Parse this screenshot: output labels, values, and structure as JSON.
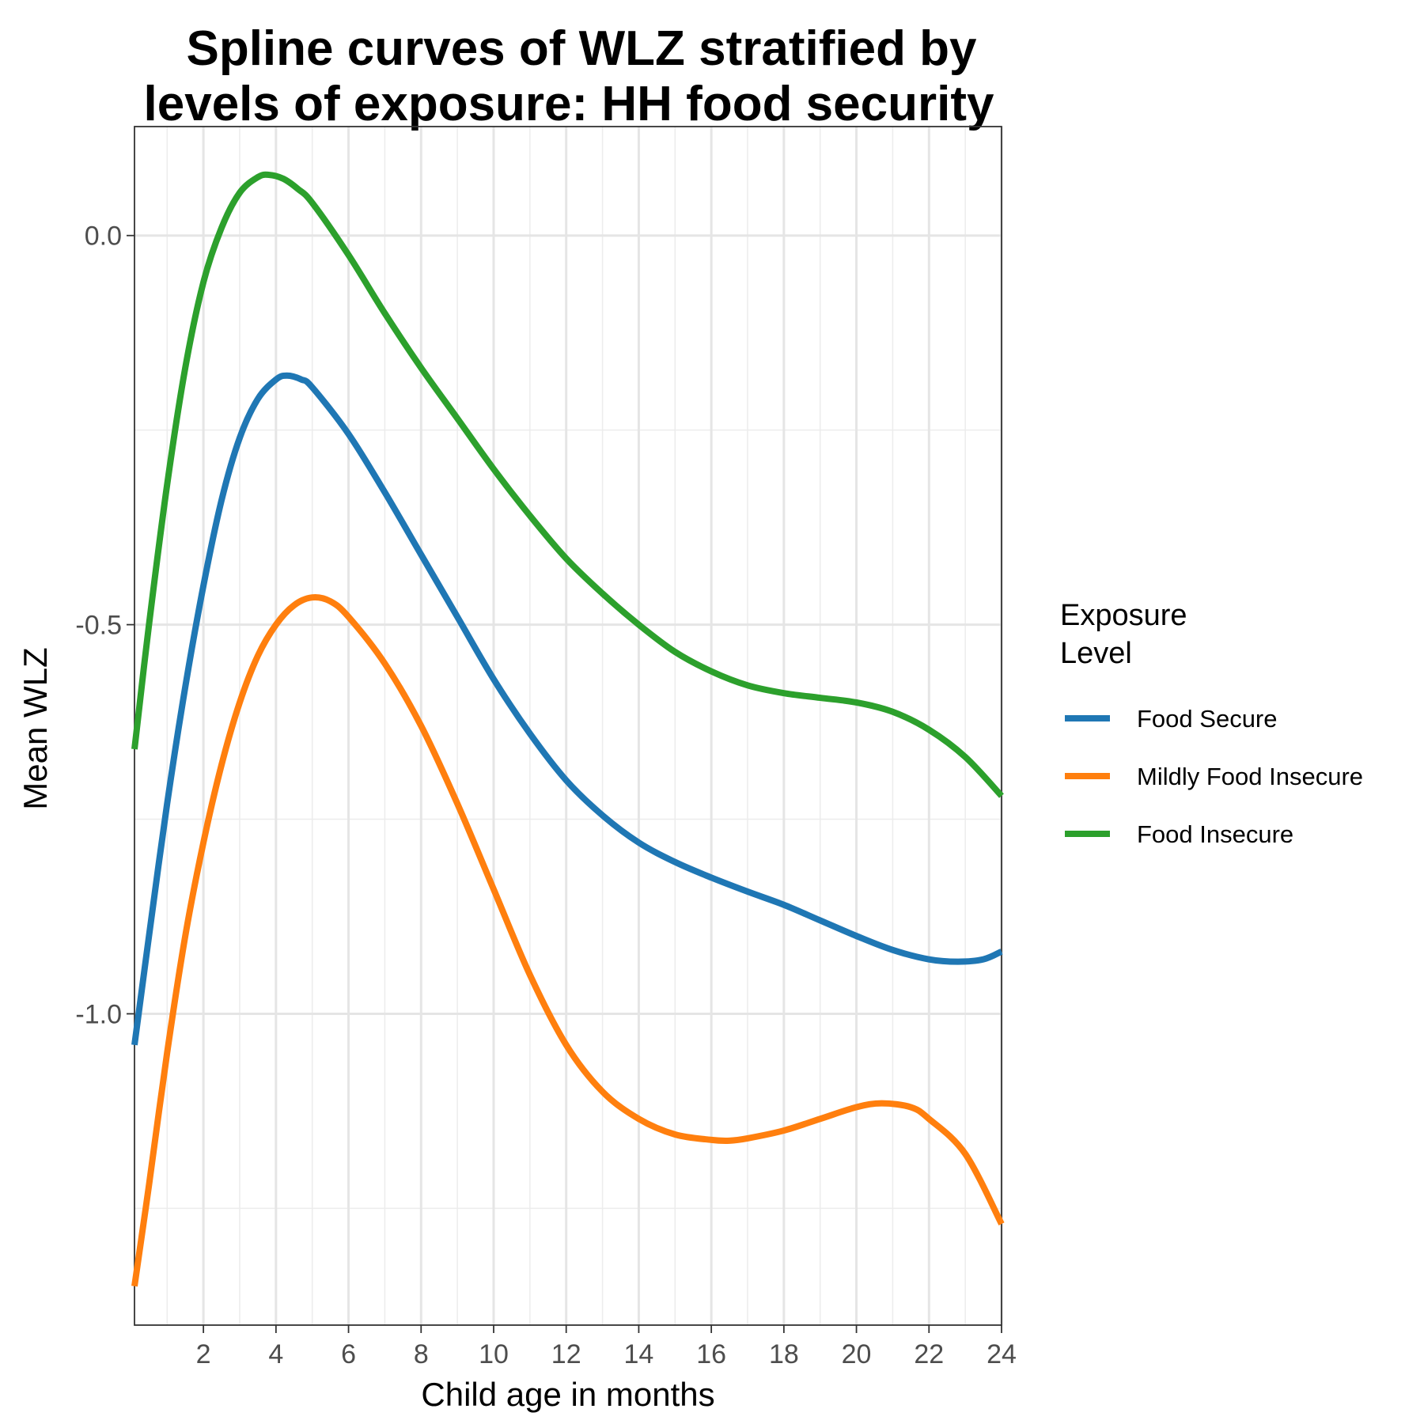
{
  "chart_data": {
    "type": "line",
    "title_lines": [
      "Spline curves of WLZ stratified by",
      "levels of exposure: HH food security"
    ],
    "xlabel": "Child age in months",
    "ylabel": "Mean WLZ",
    "xlim": [
      0.1,
      24
    ],
    "ylim": [
      -1.4,
      0.14
    ],
    "x_ticks": [
      2,
      4,
      6,
      8,
      10,
      12,
      14,
      16,
      18,
      20,
      22,
      24
    ],
    "y_ticks": [
      0.0,
      -0.5,
      -1.0
    ],
    "y_tick_labels": [
      "0.0",
      "-0.5",
      "-1.0"
    ],
    "grid": true,
    "legend": {
      "title_lines": [
        "Exposure",
        "Level"
      ],
      "placement": "right"
    },
    "series": [
      {
        "name": "Food Secure",
        "color": "#1f77b4",
        "x": [
          0.1,
          0.5,
          1,
          1.5,
          2,
          2.5,
          3,
          3.5,
          4,
          4.3,
          4.7,
          5,
          6,
          7,
          8,
          9,
          10,
          11,
          12,
          13,
          14,
          15,
          16,
          17,
          18,
          19,
          20,
          21,
          22,
          22.8,
          23.5,
          24
        ],
        "y": [
          -1.04,
          -0.9,
          -0.73,
          -0.58,
          -0.45,
          -0.34,
          -0.26,
          -0.21,
          -0.185,
          -0.18,
          -0.185,
          -0.195,
          -0.255,
          -0.33,
          -0.41,
          -0.49,
          -0.57,
          -0.64,
          -0.7,
          -0.745,
          -0.78,
          -0.805,
          -0.825,
          -0.843,
          -0.86,
          -0.88,
          -0.9,
          -0.918,
          -0.93,
          -0.933,
          -0.93,
          -0.92
        ]
      },
      {
        "name": "Mildly Food Insecure",
        "color": "#ff7f0e",
        "x": [
          0.1,
          0.5,
          1,
          1.5,
          2,
          2.5,
          3,
          3.5,
          4,
          4.5,
          5,
          5.5,
          6,
          7,
          8,
          9,
          10,
          11,
          12,
          13,
          14,
          15,
          16,
          16.5,
          17,
          18,
          19,
          20,
          20.7,
          21.5,
          22,
          23,
          24
        ],
        "y": [
          -1.35,
          -1.22,
          -1.05,
          -0.9,
          -0.78,
          -0.68,
          -0.6,
          -0.54,
          -0.5,
          -0.475,
          -0.465,
          -0.47,
          -0.49,
          -0.55,
          -0.63,
          -0.73,
          -0.84,
          -0.95,
          -1.04,
          -1.1,
          -1.135,
          -1.155,
          -1.162,
          -1.163,
          -1.16,
          -1.15,
          -1.135,
          -1.12,
          -1.115,
          -1.12,
          -1.135,
          -1.18,
          -1.27
        ]
      },
      {
        "name": "Food Insecure",
        "color": "#2ca02c",
        "x": [
          0.1,
          0.5,
          1,
          1.5,
          2,
          2.5,
          3,
          3.5,
          3.8,
          4.2,
          4.6,
          5,
          6,
          7,
          8,
          9,
          10,
          11,
          12,
          13,
          14,
          15,
          16,
          17,
          18,
          19,
          20,
          21,
          22,
          23,
          24
        ],
        "y": [
          -0.66,
          -0.5,
          -0.32,
          -0.17,
          -0.06,
          0.01,
          0.055,
          0.075,
          0.078,
          0.073,
          0.06,
          0.042,
          -0.025,
          -0.1,
          -0.17,
          -0.235,
          -0.3,
          -0.36,
          -0.415,
          -0.46,
          -0.5,
          -0.535,
          -0.56,
          -0.578,
          -0.588,
          -0.594,
          -0.6,
          -0.612,
          -0.635,
          -0.67,
          -0.72
        ]
      }
    ]
  }
}
